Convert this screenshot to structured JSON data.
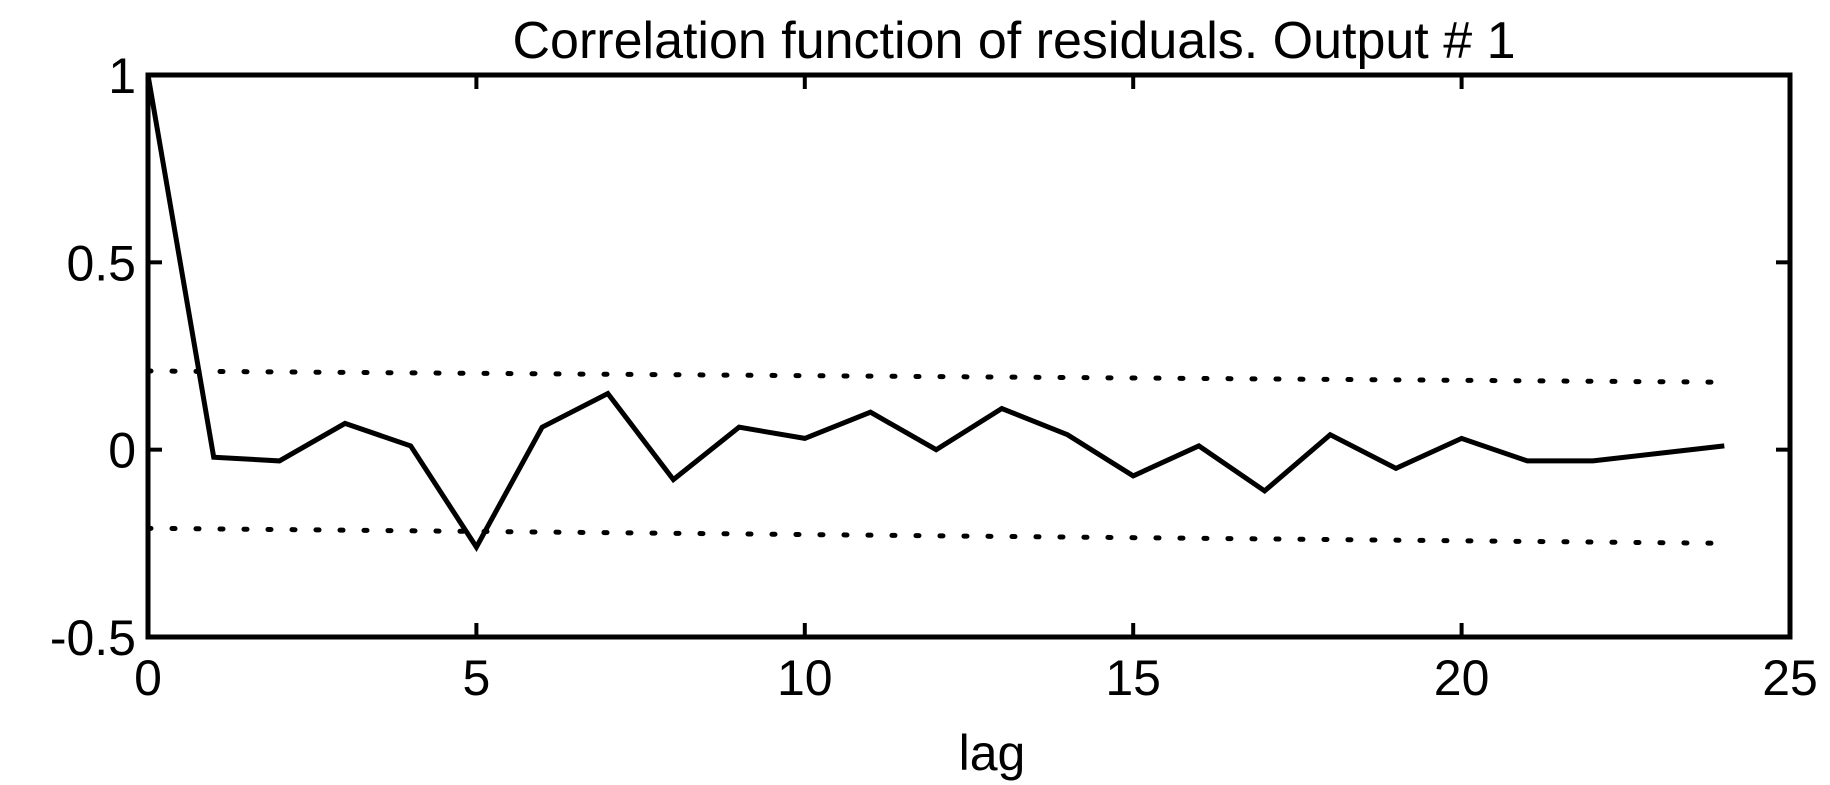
{
  "chart_data": {
    "type": "line",
    "title": "Correlation function of residuals. Output # 1",
    "xlabel": "lag",
    "ylabel": "",
    "xlim": [
      0,
      25
    ],
    "ylim": [
      -0.5,
      1
    ],
    "xticks": [
      0,
      5,
      10,
      15,
      20,
      25
    ],
    "yticks": [
      -0.5,
      0,
      0.5,
      1
    ],
    "xtick_labels": [
      "0",
      "5",
      "10",
      "15",
      "20",
      "25"
    ],
    "ytick_labels": [
      "-0.5",
      "0",
      "0.5",
      "1"
    ],
    "grid": false,
    "legend": "none",
    "series": [
      {
        "style": "solid",
        "x": [
          0,
          1,
          2,
          3,
          4,
          5,
          6,
          7,
          8,
          9,
          10,
          11,
          12,
          13,
          14,
          15,
          16,
          17,
          18,
          19,
          20,
          21,
          22,
          23,
          24
        ],
        "y": [
          1.0,
          -0.02,
          -0.03,
          0.07,
          0.01,
          -0.26,
          0.06,
          0.15,
          -0.08,
          0.06,
          0.03,
          0.1,
          0.0,
          0.11,
          0.04,
          -0.07,
          0.01,
          -0.11,
          0.04,
          -0.05,
          0.03,
          -0.03,
          -0.03,
          -0.01,
          0.01
        ]
      },
      {
        "style": "dotted",
        "x": [
          0,
          24
        ],
        "y": [
          0.21,
          0.18
        ]
      },
      {
        "style": "dotted",
        "x": [
          0,
          24
        ],
        "y": [
          -0.21,
          -0.25
        ]
      }
    ]
  }
}
